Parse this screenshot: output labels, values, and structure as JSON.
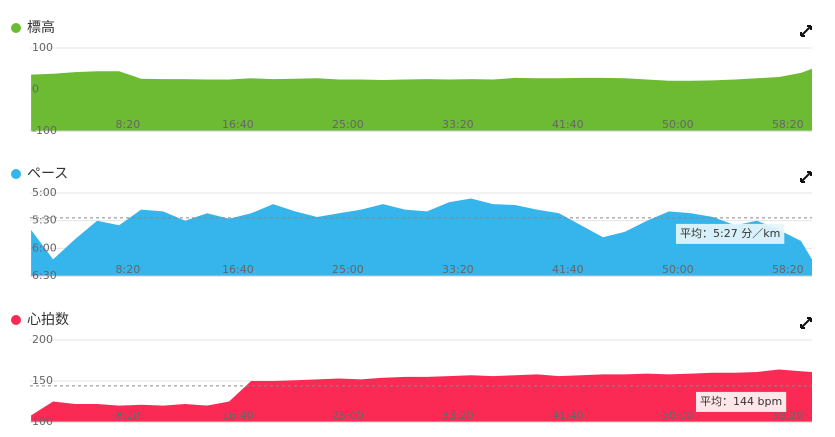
{
  "chart_data": [
    {
      "type": "area",
      "title": "標高",
      "color": "#6cbb33",
      "x": [
        60,
        160,
        260,
        360,
        460,
        560,
        660,
        760,
        860,
        960,
        1060,
        1160,
        1260,
        1360,
        1460,
        1560,
        1660,
        1760,
        1860,
        1960,
        2060,
        2160,
        2260,
        2360,
        2460,
        2560,
        2660,
        2760,
        2860,
        2960,
        3060,
        3160,
        3260,
        3360,
        3460,
        3560,
        3610
      ],
      "values": [
        36,
        38,
        42,
        44,
        44,
        26,
        25,
        25,
        24,
        24,
        27,
        25,
        26,
        27,
        24,
        24,
        23,
        24,
        25,
        24,
        25,
        24,
        28,
        27,
        27,
        28,
        28,
        27,
        24,
        21,
        21,
        22,
        24,
        27,
        30,
        40,
        50
      ],
      "xlim": [
        55,
        3610
      ],
      "xticks": [
        {
          "value": 500,
          "label": "8:20"
        },
        {
          "value": 1000,
          "label": "16:40"
        },
        {
          "value": 1500,
          "label": "25:00"
        },
        {
          "value": 2000,
          "label": "33:20"
        },
        {
          "value": 2500,
          "label": "41:40"
        },
        {
          "value": 3000,
          "label": "50:00"
        },
        {
          "value": 3500,
          "label": "58:20"
        }
      ],
      "ylim": [
        -100,
        100
      ],
      "yticks": [
        100,
        0,
        -100
      ],
      "grid": true
    },
    {
      "type": "area",
      "title": "ペース",
      "color": "#36b4ec",
      "x": [
        60,
        160,
        260,
        360,
        460,
        560,
        660,
        760,
        860,
        960,
        1060,
        1160,
        1260,
        1360,
        1460,
        1560,
        1660,
        1760,
        1860,
        1960,
        2060,
        2160,
        2260,
        2360,
        2460,
        2560,
        2660,
        2760,
        2860,
        2960,
        3060,
        3160,
        3260,
        3360,
        3460,
        3560,
        3610
      ],
      "values": [
        340,
        372,
        350,
        330,
        335,
        318,
        320,
        330,
        322,
        328,
        322,
        312,
        320,
        326,
        322,
        318,
        312,
        318,
        320,
        310,
        306,
        312,
        313,
        318,
        322,
        335,
        348,
        342,
        330,
        320,
        322,
        326,
        335,
        330,
        340,
        352,
        372
      ],
      "xlim": [
        55,
        3610
      ],
      "xticks": [
        {
          "value": 500,
          "label": "8:20"
        },
        {
          "value": 1000,
          "label": "16:40"
        },
        {
          "value": 1500,
          "label": "25:00"
        },
        {
          "value": 2000,
          "label": "33:20"
        },
        {
          "value": 2500,
          "label": "41:40"
        },
        {
          "value": 3000,
          "label": "50:00"
        },
        {
          "value": 3500,
          "label": "58:20"
        }
      ],
      "ylim": [
        390,
        300
      ],
      "yticks": [
        {
          "value": 300,
          "label": "5:00"
        },
        {
          "value": 330,
          "label": "5:30"
        },
        {
          "value": 360,
          "label": "6:00"
        },
        {
          "value": 390,
          "label": "6:30"
        }
      ],
      "grid": true,
      "average": {
        "value": 327,
        "label": "平均：5:27 分／km"
      }
    },
    {
      "type": "area",
      "title": "心拍数",
      "color": "#fb2a55",
      "x": [
        60,
        160,
        260,
        360,
        460,
        560,
        660,
        760,
        860,
        960,
        1060,
        1160,
        1260,
        1360,
        1460,
        1560,
        1660,
        1760,
        1860,
        1960,
        2060,
        2160,
        2260,
        2360,
        2460,
        2560,
        2660,
        2760,
        2860,
        2960,
        3060,
        3160,
        3260,
        3360,
        3460,
        3560,
        3610
      ],
      "values": [
        108,
        125,
        122,
        122,
        120,
        121,
        120,
        122,
        120,
        125,
        150,
        150,
        151,
        152,
        153,
        152,
        154,
        155,
        155,
        156,
        157,
        156,
        157,
        158,
        156,
        157,
        158,
        158,
        159,
        158,
        159,
        160,
        160,
        161,
        164,
        162,
        161
      ],
      "xlim": [
        55,
        3610
      ],
      "xticks": [
        {
          "value": 500,
          "label": "8:20"
        },
        {
          "value": 1000,
          "label": "16:40"
        },
        {
          "value": 1500,
          "label": "25:00"
        },
        {
          "value": 2000,
          "label": "33:20"
        },
        {
          "value": 2500,
          "label": "41:40"
        },
        {
          "value": 3000,
          "label": "50:00"
        },
        {
          "value": 3500,
          "label": "58:20"
        }
      ],
      "ylim": [
        100,
        200
      ],
      "yticks": [
        200,
        150,
        100
      ],
      "grid": true,
      "average": {
        "value": 144,
        "label": "平均：144 bpm"
      }
    }
  ]
}
